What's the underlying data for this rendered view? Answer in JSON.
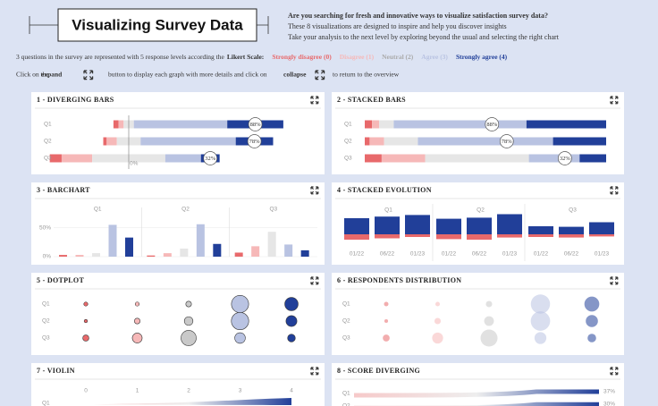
{
  "header": {
    "title": "Visualizing Survey Data",
    "tagline": [
      "Are you searching for fresh and innovative ways to visualize satisfaction survey data?",
      "These 8 visualizations are designed to inspire and help you discover insights",
      "Take your analysis to the next level by exploring beyond the usual and selecting the right chart"
    ]
  },
  "intro": {
    "text": "3 questions in the survey are represented with 5 response levels according the",
    "scale": "Likert Scale:",
    "levels": [
      {
        "name": "Strongly disagree (0)",
        "color": "#e8696b"
      },
      {
        "name": "Disagree (1)",
        "color": "#f6b8b8"
      },
      {
        "name": "Neutral (2)",
        "color": "#c9c9c9"
      },
      {
        "name": "Agree (3)",
        "color": "#b9c3e2"
      },
      {
        "name": "Strongly agree (4)",
        "color": "#213f99"
      }
    ]
  },
  "help": {
    "parts": [
      "Click on the",
      "expand",
      "button to display each graph with more details and click on",
      "collapse",
      "to return to the overview"
    ]
  },
  "questions": [
    "Q1",
    "Q2",
    "Q3"
  ],
  "shares": [
    [
      3,
      3,
      6,
      55,
      33
    ],
    [
      2,
      6,
      14,
      56,
      22
    ],
    [
      7,
      18,
      43,
      21,
      11
    ]
  ],
  "agree": {
    "values": [
      88,
      78,
      32
    ],
    "value_labels": [
      "88%",
      "78%",
      "32%"
    ]
  },
  "panels": [
    {
      "title": "1 - DIVERGING BARS",
      "zero_label": "0%"
    },
    {
      "title": "2 - STACKED BARS"
    },
    {
      "title": "3 - BARCHART",
      "ylim": [
        0,
        85
      ],
      "yticks": [
        {
          "value": 0,
          "label": "0%"
        },
        {
          "value": 50,
          "label": "50%"
        }
      ]
    },
    {
      "title": "4 - STACKED EVOLUTION",
      "dates": [
        "01/22",
        "06/22",
        "01/23"
      ],
      "positive": [
        [
          60,
          66,
          72
        ],
        [
          58,
          62,
          75
        ],
        [
          30,
          28,
          45
        ]
      ],
      "negative": [
        [
          20,
          15,
          10
        ],
        [
          18,
          20,
          12
        ],
        [
          10,
          12,
          8
        ]
      ]
    },
    {
      "title": "5 - DOTPLOT"
    },
    {
      "title": "6 - RESPONDENTS DISTRIBUTION"
    },
    {
      "title": "7 - VIOLIN",
      "xticks": [
        0,
        1,
        2,
        3,
        4
      ]
    },
    {
      "title": "8 - SCORE DIVERGING",
      "values": [
        37,
        30
      ],
      "value_labels": [
        "37%",
        "30%"
      ]
    }
  ]
}
